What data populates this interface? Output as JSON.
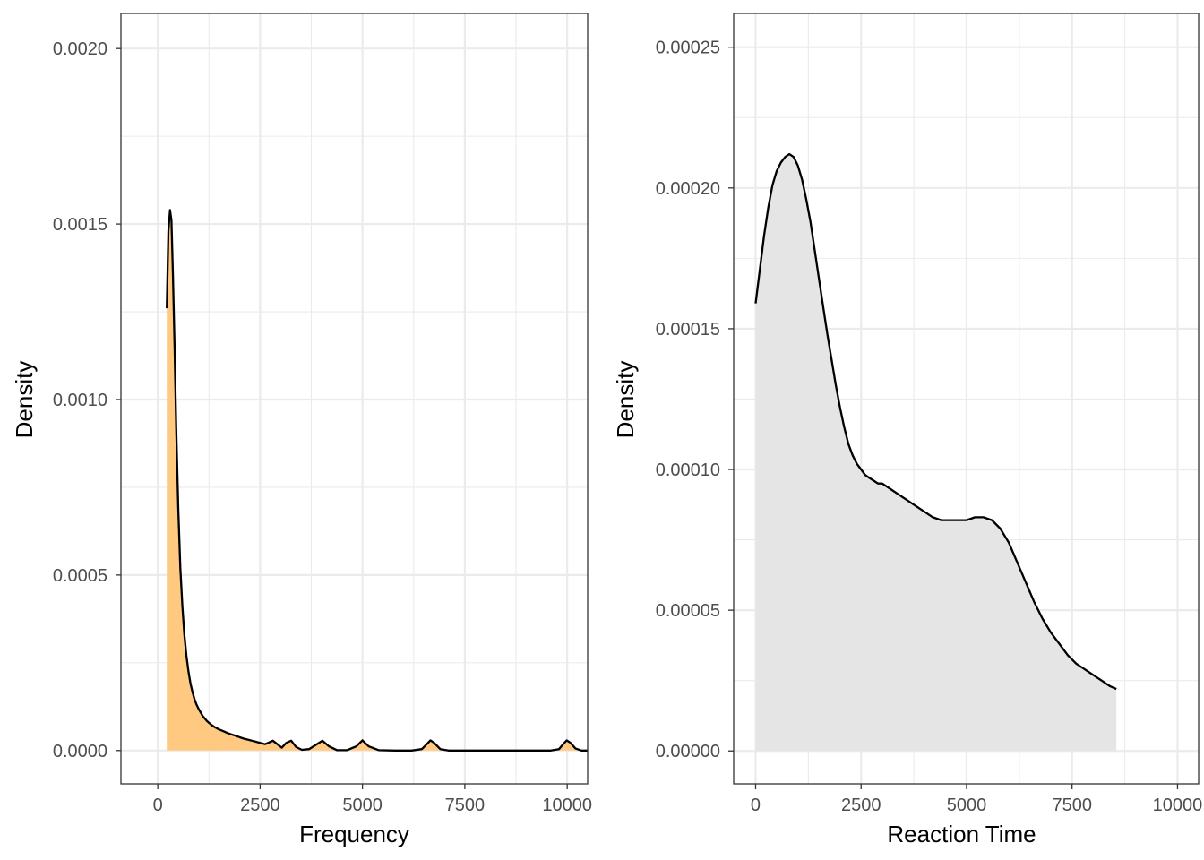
{
  "chart_data": [
    {
      "type": "area",
      "subtype": "density",
      "xlabel": "Frequency",
      "ylabel": "Density",
      "xlim": [
        -900,
        10500
      ],
      "ylim": [
        -9.5e-05,
        0.0021
      ],
      "x_ticks": [
        0,
        2500,
        5000,
        7500,
        10000
      ],
      "x_tick_labels": [
        "0",
        "2500",
        "5000",
        "7500",
        "10000"
      ],
      "y_ticks": [
        0,
        0.0005,
        0.001,
        0.0015,
        0.002
      ],
      "y_tick_labels": [
        "0.0000",
        "0.0005",
        "0.0010",
        "0.0015",
        "0.0020"
      ],
      "grid": true,
      "fill_color": "#FFC982",
      "line_color": "#000000",
      "x": [
        220,
        260,
        300,
        335,
        370,
        410,
        450,
        500,
        550,
        600,
        650,
        700,
        750,
        800,
        850,
        900,
        950,
        1000,
        1100,
        1200,
        1300,
        1400,
        1500,
        1600,
        1700,
        1800,
        1900,
        2000,
        2100,
        2200,
        2300,
        2400,
        2500,
        2620,
        2700,
        2810,
        2920,
        3030,
        3140,
        3260,
        3380,
        3520,
        3700,
        3860,
        4020,
        4180,
        4380,
        4620,
        4850,
        5000,
        5150,
        5400,
        5800,
        6200,
        6450,
        6580,
        6660,
        6750,
        6900,
        7100,
        7500,
        8000,
        8500,
        9000,
        9600,
        9800,
        9900,
        9990,
        10080,
        10200,
        10350,
        10500
      ],
      "y": [
        0.00126,
        0.00148,
        0.00154,
        0.00151,
        0.00136,
        0.00115,
        0.00092,
        0.00069,
        0.00052,
        0.00041,
        0.00033,
        0.00027,
        0.000225,
        0.00019,
        0.000165,
        0.000145,
        0.00013,
        0.000118,
        9.8e-05,
        8.4e-05,
        7.4e-05,
        6.6e-05,
        6e-05,
        5.5e-05,
        5e-05,
        4.6e-05,
        4.2e-05,
        3.8e-05,
        3.4e-05,
        3.1e-05,
        2.8e-05,
        2.5e-05,
        2.2e-05,
        1.8e-05,
        2.2e-05,
        2.8e-05,
        1.8e-05,
        8e-06,
        2.2e-05,
        2.8e-05,
        1e-05,
        2e-06,
        4e-06,
        1.6e-05,
        2.8e-05,
        1.2e-05,
        1e-06,
        1e-06,
        1.2e-05,
        2.9e-05,
        1.2e-05,
        1e-06,
        0.0,
        0.0,
        4e-06,
        1.9e-05,
        2.9e-05,
        2.2e-05,
        4e-06,
        0.0,
        0.0,
        0.0,
        0.0,
        0.0,
        0.0,
        4e-06,
        1.8e-05,
        2.9e-05,
        2.2e-05,
        6e-06,
        0.0,
        0.0
      ]
    },
    {
      "type": "area",
      "subtype": "density",
      "xlabel": "Reaction Time",
      "ylabel": "Density",
      "xlim": [
        -520,
        10500
      ],
      "ylim": [
        -1.17e-05,
        0.000262
      ],
      "x_ticks": [
        0,
        2500,
        5000,
        7500,
        10000
      ],
      "x_tick_labels": [
        "0",
        "2500",
        "5000",
        "7500",
        "10000"
      ],
      "y_ticks": [
        0,
        5e-05,
        0.0001,
        0.00015,
        0.0002,
        0.00025
      ],
      "y_tick_labels": [
        "0.00000",
        "0.00005",
        "0.00010",
        "0.00015",
        "0.00020",
        "0.00025"
      ],
      "grid": true,
      "fill_color": "#E5E5E5",
      "line_color": "#000000",
      "x": [
        0,
        100,
        200,
        300,
        400,
        500,
        600,
        700,
        800,
        900,
        1000,
        1100,
        1200,
        1300,
        1400,
        1500,
        1600,
        1700,
        1800,
        1900,
        2000,
        2100,
        2200,
        2300,
        2400,
        2500,
        2600,
        2700,
        2800,
        2900,
        3000,
        3200,
        3400,
        3600,
        3800,
        4000,
        4200,
        4400,
        4600,
        4800,
        5000,
        5200,
        5400,
        5600,
        5800,
        6000,
        6200,
        6400,
        6600,
        6800,
        7000,
        7200,
        7400,
        7600,
        7800,
        8000,
        8200,
        8400,
        8550
      ],
      "y": [
        0.000159,
        0.000171,
        0.000183,
        0.000193,
        0.000201,
        0.000206,
        0.000209,
        0.000211,
        0.000212,
        0.000211,
        0.000208,
        0.000203,
        0.000196,
        0.000188,
        0.000178,
        0.000168,
        0.000158,
        0.000148,
        0.000139,
        0.00013,
        0.000122,
        0.000115,
        0.000109,
        0.000105,
        0.000102,
        0.0001,
        9.8e-05,
        9.7e-05,
        9.6e-05,
        9.5e-05,
        9.5e-05,
        9.3e-05,
        9.1e-05,
        8.9e-05,
        8.7e-05,
        8.5e-05,
        8.3e-05,
        8.2e-05,
        8.2e-05,
        8.2e-05,
        8.2e-05,
        8.3e-05,
        8.3e-05,
        8.2e-05,
        7.9e-05,
        7.4e-05,
        6.7e-05,
        6e-05,
        5.3e-05,
        4.7e-05,
        4.2e-05,
        3.8e-05,
        3.4e-05,
        3.1e-05,
        2.9e-05,
        2.7e-05,
        2.5e-05,
        2.3e-05,
        2.2e-05
      ]
    }
  ]
}
